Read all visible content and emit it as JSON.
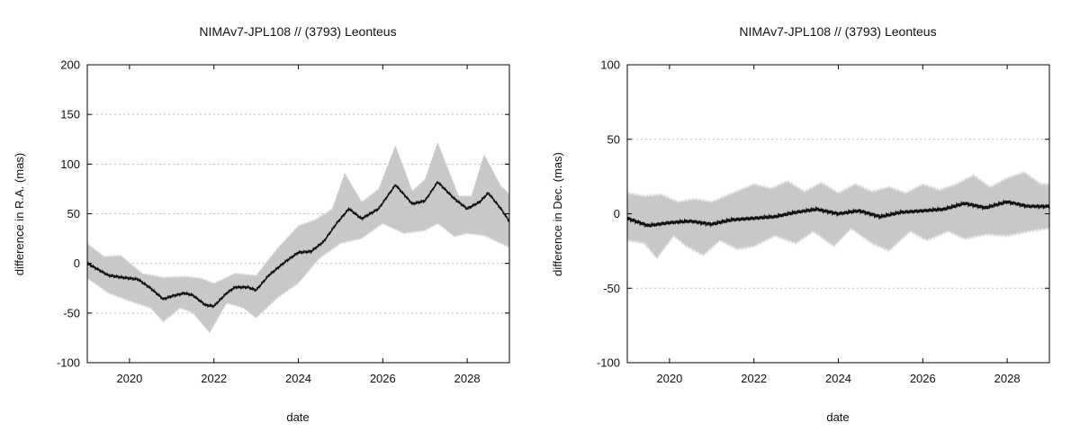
{
  "chart_data": [
    {
      "type": "area",
      "title": "NIMAv7-JPL108 // (3793) Leonteus",
      "xlabel": "date",
      "ylabel": "difference in R.A. (mas)",
      "xlim": [
        2019.0,
        2029.0
      ],
      "ylim": [
        -100,
        200
      ],
      "xticks": [
        2020,
        2022,
        2024,
        2026,
        2028
      ],
      "xtick_labels": [
        "2020",
        "2022",
        "2024",
        "2026",
        "2028"
      ],
      "yticks": [
        -100,
        -50,
        0,
        50,
        100,
        150,
        200
      ],
      "ytick_labels": [
        "-100",
        "-50",
        "0",
        "50",
        "100",
        "150",
        "200"
      ],
      "grid": "horizontal-dotted",
      "colors": {
        "band": "#c8c8c8",
        "line": "#111111"
      },
      "series": [
        {
          "kind": "line",
          "x": [
            2019.0,
            2019.5,
            2019.8,
            2020.2,
            2020.5,
            2020.8,
            2021.0,
            2021.3,
            2021.5,
            2021.8,
            2022.0,
            2022.3,
            2022.5,
            2022.8,
            2023.0,
            2023.3,
            2023.7,
            2024.0,
            2024.3,
            2024.6,
            2024.9,
            2025.2,
            2025.5,
            2025.9,
            2026.3,
            2026.7,
            2027.0,
            2027.3,
            2027.7,
            2028.0,
            2028.3,
            2028.5,
            2028.8,
            2029.0
          ],
          "y": [
            0,
            -12,
            -14,
            -16,
            -25,
            -36,
            -33,
            -30,
            -32,
            -42,
            -43,
            -30,
            -24,
            -24,
            -27,
            -12,
            2,
            11,
            12,
            22,
            40,
            55,
            45,
            55,
            79,
            60,
            63,
            82,
            65,
            55,
            62,
            71,
            55,
            42
          ]
        },
        {
          "kind": "band-upper",
          "x": [
            2019.0,
            2019.4,
            2019.8,
            2020.3,
            2020.8,
            2021.3,
            2021.7,
            2022.0,
            2022.5,
            2023.0,
            2023.5,
            2024.0,
            2024.4,
            2024.8,
            2025.1,
            2025.5,
            2025.9,
            2026.3,
            2026.7,
            2027.0,
            2027.3,
            2027.8,
            2028.1,
            2028.4,
            2028.8,
            2029.0
          ],
          "y": [
            20,
            7,
            8,
            -10,
            -14,
            -13,
            -15,
            -20,
            -10,
            -12,
            15,
            38,
            44,
            55,
            91,
            62,
            75,
            119,
            73,
            85,
            122,
            68,
            68,
            110,
            78,
            70
          ]
        },
        {
          "kind": "band-lower",
          "x": [
            2019.0,
            2019.5,
            2020.0,
            2020.5,
            2020.8,
            2021.2,
            2021.5,
            2021.9,
            2022.3,
            2022.7,
            2023.0,
            2023.5,
            2024.0,
            2024.5,
            2025.0,
            2025.5,
            2026.0,
            2026.5,
            2027.0,
            2027.3,
            2027.7,
            2028.0,
            2028.4,
            2028.8,
            2029.0
          ],
          "y": [
            -15,
            -30,
            -38,
            -45,
            -59,
            -45,
            -50,
            -70,
            -40,
            -45,
            -55,
            -35,
            -20,
            5,
            20,
            25,
            40,
            30,
            33,
            40,
            27,
            30,
            28,
            20,
            16
          ]
        }
      ]
    },
    {
      "type": "area",
      "title": "NIMAv7-JPL108 // (3793) Leonteus",
      "xlabel": "date",
      "ylabel": "difference in Dec. (mas)",
      "xlim": [
        2019.0,
        2029.0
      ],
      "ylim": [
        -100,
        100
      ],
      "xticks": [
        2020,
        2022,
        2024,
        2026,
        2028
      ],
      "xtick_labels": [
        "2020",
        "2022",
        "2024",
        "2026",
        "2028"
      ],
      "yticks": [
        -100,
        -50,
        0,
        50,
        100
      ],
      "ytick_labels": [
        "-100",
        "-50",
        "0",
        "50",
        "100"
      ],
      "grid": "horizontal-dotted",
      "colors": {
        "band": "#c8c8c8",
        "line": "#111111"
      },
      "series": [
        {
          "kind": "line",
          "x": [
            2019.0,
            2019.5,
            2020.0,
            2020.5,
            2021.0,
            2021.5,
            2022.0,
            2022.5,
            2023.0,
            2023.5,
            2024.0,
            2024.5,
            2025.0,
            2025.5,
            2026.0,
            2026.5,
            2027.0,
            2027.5,
            2028.0,
            2028.5,
            2029.0
          ],
          "y": [
            -3,
            -8,
            -6,
            -5,
            -7,
            -4,
            -3,
            -2,
            1,
            3,
            0,
            2,
            -2,
            1,
            2,
            3,
            7,
            4,
            8,
            5,
            5
          ]
        },
        {
          "kind": "band-upper",
          "x": [
            2019.0,
            2019.4,
            2019.8,
            2020.2,
            2020.6,
            2021.0,
            2021.5,
            2022.0,
            2022.4,
            2022.8,
            2023.2,
            2023.6,
            2024.0,
            2024.4,
            2024.8,
            2025.2,
            2025.6,
            2026.0,
            2026.4,
            2026.8,
            2027.2,
            2027.6,
            2028.0,
            2028.4,
            2028.8,
            2029.0
          ],
          "y": [
            14,
            12,
            13,
            8,
            10,
            8,
            14,
            20,
            17,
            22,
            15,
            21,
            14,
            20,
            15,
            18,
            14,
            20,
            16,
            20,
            26,
            18,
            24,
            28,
            20,
            20
          ]
        },
        {
          "kind": "band-lower",
          "x": [
            2019.0,
            2019.4,
            2019.7,
            2020.1,
            2020.4,
            2020.8,
            2021.2,
            2021.6,
            2022.0,
            2022.5,
            2023.0,
            2023.4,
            2023.9,
            2024.3,
            2024.8,
            2025.2,
            2025.7,
            2026.1,
            2026.6,
            2027.0,
            2027.5,
            2028.0,
            2028.5,
            2029.0
          ],
          "y": [
            -18,
            -20,
            -30,
            -15,
            -22,
            -28,
            -18,
            -24,
            -22,
            -15,
            -20,
            -12,
            -22,
            -10,
            -20,
            -25,
            -12,
            -18,
            -12,
            -17,
            -14,
            -15,
            -12,
            -10
          ]
        }
      ]
    }
  ]
}
